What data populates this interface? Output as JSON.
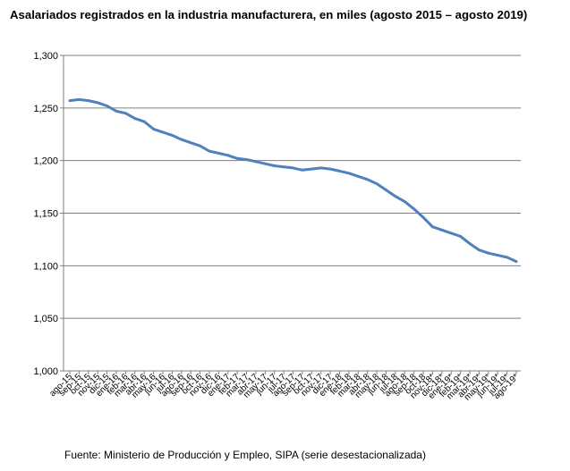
{
  "chart_data": {
    "type": "line",
    "title": "Asalariados registrados en la industria manufacturera, en miles (agosto 2015 – agosto 2019)",
    "source": "Fuente: Ministerio de Producción y Empleo, SIPA (serie desestacionalizada)",
    "xlabel": "",
    "ylabel": "",
    "ylim": [
      1000,
      1300
    ],
    "yticks": [
      1000,
      1050,
      1100,
      1150,
      1200,
      1250,
      1300
    ],
    "ytick_labels": [
      "1,000",
      "1,050",
      "1,100",
      "1,150",
      "1,200",
      "1,250",
      "1,300"
    ],
    "grid": true,
    "legend": "none",
    "line_color": "#4f81bd",
    "categories": [
      "ago-15",
      "sep-15",
      "oct-15",
      "nov-15",
      "dic-15",
      "ene-16",
      "feb-16",
      "mar-16",
      "abr-16",
      "may-16",
      "jun-16",
      "jul-16",
      "ago-16",
      "sep-16",
      "oct-16",
      "nov-16",
      "dic-16",
      "ene-17",
      "feb-17",
      "mar-17",
      "abr-17",
      "may-17",
      "jun-17",
      "jul-17",
      "ago-17",
      "sep-17",
      "oct-17",
      "nov-17",
      "dic-17",
      "ene-18",
      "feb-18",
      "mar-18",
      "abr-18",
      "may-18",
      "jun-18",
      "jul-18",
      "ago-18",
      "sep-18",
      "oct-18",
      "nov-18*",
      "dic-18*",
      "ene-19*",
      "feb-19*",
      "mar-19*",
      "abr-19*",
      "may-19*",
      "jun-19*",
      "jul-19*",
      "ago-19*"
    ],
    "series": [
      {
        "values": [
          1257,
          1258,
          1257,
          1255,
          1252,
          1247,
          1245,
          1240,
          1237,
          1230,
          1227,
          1224,
          1220,
          1217,
          1214,
          1209,
          1207,
          1205,
          1202,
          1201,
          1199,
          1197,
          1195,
          1194,
          1193,
          1191,
          1192,
          1193,
          1192,
          1190,
          1188,
          1185,
          1182,
          1178,
          1172,
          1166,
          1161,
          1154,
          1146,
          1137,
          1134,
          1131,
          1128,
          1121,
          1115,
          1112,
          1110,
          1108,
          1104
        ]
      }
    ]
  }
}
